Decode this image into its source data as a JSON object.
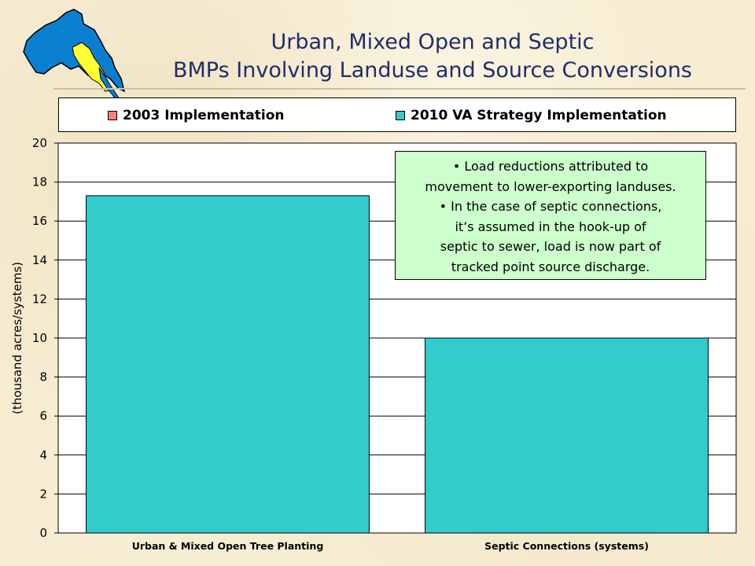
{
  "title": {
    "line1": "Urban, Mixed Open and Septic",
    "line2": "BMPs Involving Landuse and Source Conversions"
  },
  "colors": {
    "series_2003": "#ff8080",
    "series_2010": "#33cccc",
    "title_text": "#1f2d6b",
    "note_bg": "#ccffcc",
    "logo_basin": "#0a7fd0",
    "logo_region": "#ffff33"
  },
  "logo": {
    "icon": "chesapeake-watershed-map-icon"
  },
  "note_lines": [
    "• Load reductions attributed to",
    "movement to lower-exporting landuses.",
    "• In the case of septic connections,",
    "it’s assumed in the hook-up of",
    "septic to sewer, load is now part of",
    "tracked point source discharge."
  ],
  "chart_data": {
    "type": "bar",
    "categories": [
      "Urban & Mixed Open Tree Planting",
      "Septic Connections (systems)"
    ],
    "series": [
      {
        "name": "2003 Implementation",
        "values": [
          0,
          0
        ]
      },
      {
        "name": "2010 VA Strategy Implementation",
        "values": [
          17.3,
          10.0
        ]
      }
    ],
    "ylabel": "(thousand acres/systems)",
    "xlabel": "",
    "ylim": [
      0,
      20
    ],
    "yticks": [
      0,
      2,
      4,
      6,
      8,
      10,
      12,
      14,
      16,
      18,
      20
    ],
    "grid": true,
    "legend": "top"
  }
}
